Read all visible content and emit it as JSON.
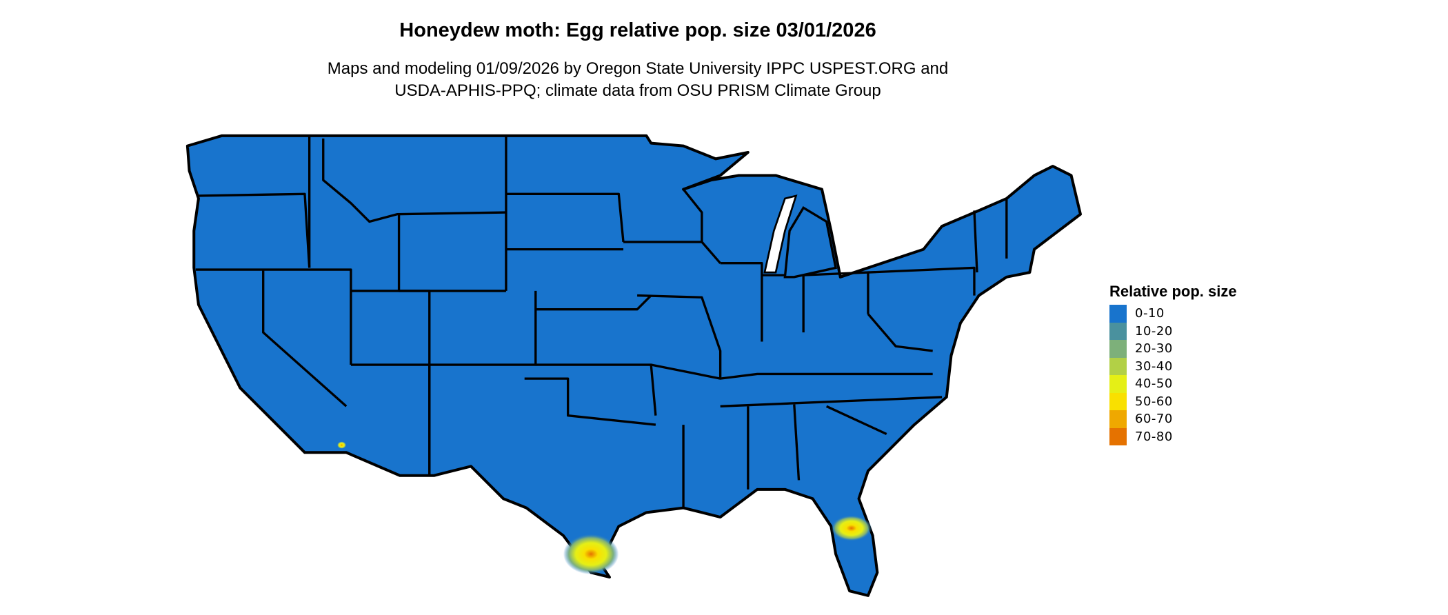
{
  "title": "Honeydew moth: Egg relative pop. size 03/01/2026",
  "subtitle_line1": "Maps and modeling 01/09/2026 by Oregon State University IPPC USPEST.ORG and",
  "subtitle_line2": "USDA-APHIS-PPQ; climate data from OSU PRISM Climate Group",
  "legend": {
    "title": "Relative pop. size",
    "items": [
      {
        "label": "0-10",
        "color": "#1874cd"
      },
      {
        "label": "10-20",
        "color": "#4a919e"
      },
      {
        "label": "20-30",
        "color": "#7db07a"
      },
      {
        "label": "30-40",
        "color": "#b2d046"
      },
      {
        "label": "40-50",
        "color": "#e5ef16"
      },
      {
        "label": "50-60",
        "color": "#f9e000"
      },
      {
        "label": "60-70",
        "color": "#efa800"
      },
      {
        "label": "70-80",
        "color": "#e57200"
      }
    ]
  },
  "map": {
    "base_color": "#1874cd",
    "border_color": "#000000",
    "hotspot_regions": [
      "south Texas",
      "central Florida",
      "southern California border"
    ]
  }
}
